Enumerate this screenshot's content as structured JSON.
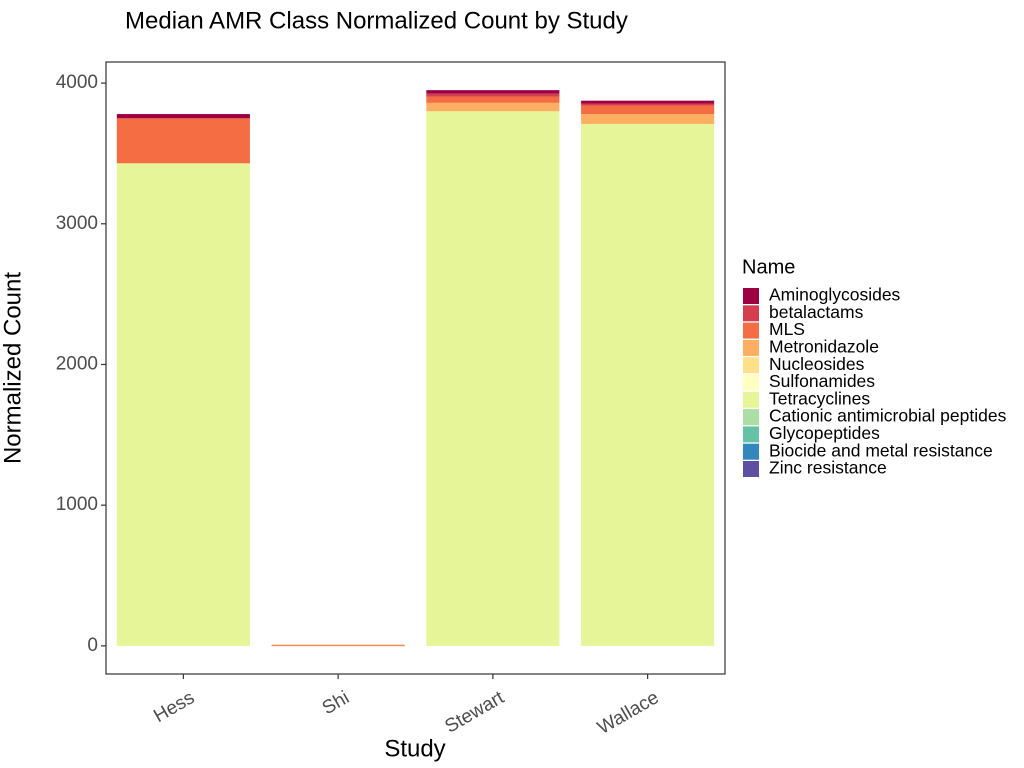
{
  "chart_data": {
    "type": "bar",
    "stacked": true,
    "title": "Median AMR Class Normalized Count by Study",
    "xlabel": "Study",
    "ylabel": "Normalized Count",
    "ylim": [
      -200,
      4150
    ],
    "yticks": [
      0,
      1000,
      2000,
      3000,
      4000
    ],
    "grid": false,
    "legend_title": "Name",
    "legend_position": "right",
    "categories": [
      "Hess",
      "Shi",
      "Stewart",
      "Wallace"
    ],
    "series": [
      {
        "name": "Aminoglycosides",
        "color": "#9e0142",
        "values": [
          30,
          0,
          25,
          20
        ]
      },
      {
        "name": "betalactams",
        "color": "#d53e4f",
        "values": [
          0,
          0,
          20,
          15
        ]
      },
      {
        "name": "MLS",
        "color": "#f46d43",
        "values": [
          320,
          5,
          45,
          60
        ]
      },
      {
        "name": "Metronidazole",
        "color": "#fdae61",
        "values": [
          0,
          3,
          60,
          70
        ]
      },
      {
        "name": "Nucleosides",
        "color": "#fee08b",
        "values": [
          0,
          0,
          0,
          0
        ]
      },
      {
        "name": "Sulfonamides",
        "color": "#ffffbf",
        "values": [
          0,
          0,
          0,
          0
        ]
      },
      {
        "name": "Tetracyclines",
        "color": "#e6f598",
        "values": [
          3430,
          0,
          3800,
          3710
        ]
      },
      {
        "name": "Cationic antimicrobial peptides",
        "color": "#abdda4",
        "values": [
          0,
          0,
          0,
          0
        ]
      },
      {
        "name": "Glycopeptides",
        "color": "#66c2a5",
        "values": [
          0,
          0,
          0,
          0
        ]
      },
      {
        "name": "Biocide and metal resistance",
        "color": "#3288bd",
        "values": [
          0,
          0,
          0,
          0
        ]
      },
      {
        "name": "Zinc resistance",
        "color": "#5e4fa2",
        "values": [
          0,
          0,
          0,
          0
        ]
      }
    ]
  }
}
